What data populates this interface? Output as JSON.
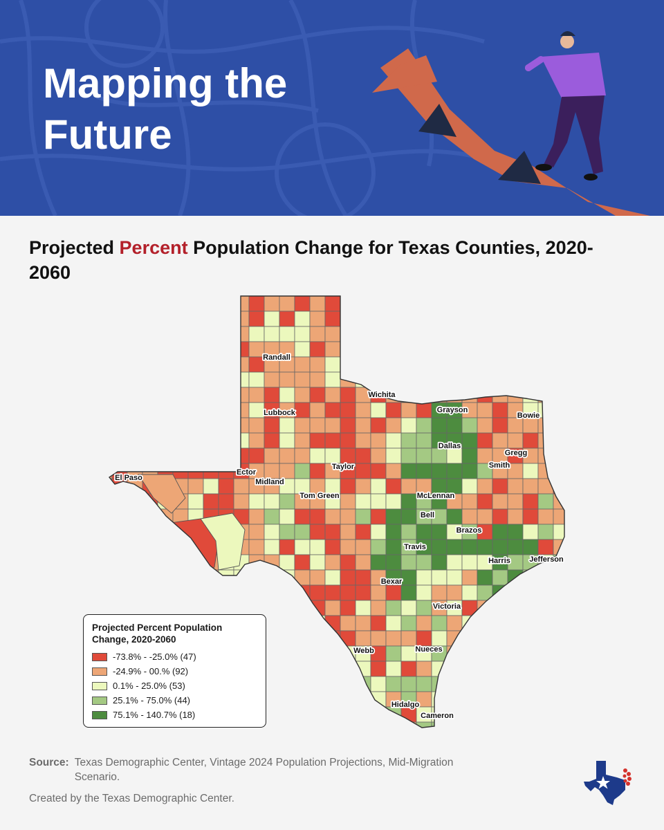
{
  "banner": {
    "title": "Mapping the Future"
  },
  "heading": {
    "before": "Projected ",
    "accent": "Percent",
    "after": " Population Change for Texas Counties, 2020-2060",
    "accent_color": "#b3202a"
  },
  "map": {
    "county_labels": [
      "Randall",
      "Wichita",
      "Grayson",
      "Bowie",
      "Lubbock",
      "Dallas",
      "Gregg",
      "Smith",
      "Taylor",
      "El Paso",
      "Ector",
      "Midland",
      "Tom Green",
      "McLennan",
      "Bell",
      "Brazos",
      "Travis",
      "Harris",
      "Jefferson",
      "Bexar",
      "Victoria",
      "Nueces",
      "Webb",
      "Hidalgo",
      "Cameron"
    ]
  },
  "legend": {
    "title": "Projected Percent Population Change, 2020-2060",
    "classes": [
      {
        "label": "-73.8% - -25.0% (47)",
        "color": "#e04a3a"
      },
      {
        "label": "-24.9% - 00.% (92)",
        "color": "#eda676"
      },
      {
        "label": "0.1% - 25.0% (53)",
        "color": "#ecf8bd"
      },
      {
        "label": "25.1% - 75.0% (44)",
        "color": "#a4c983"
      },
      {
        "label": "75.1% - 140.7% (18)",
        "color": "#4d8c3f"
      }
    ]
  },
  "footer": {
    "source_label": "Source:",
    "source_text": "Texas Demographic Center, Vintage 2024 Population Projections, Mid-Migration Scenario.",
    "credit": "Created by the Texas Demographic Center."
  },
  "colors": {
    "banner_blue": "#2e4fa6",
    "arrow_orange": "#d0694b"
  }
}
